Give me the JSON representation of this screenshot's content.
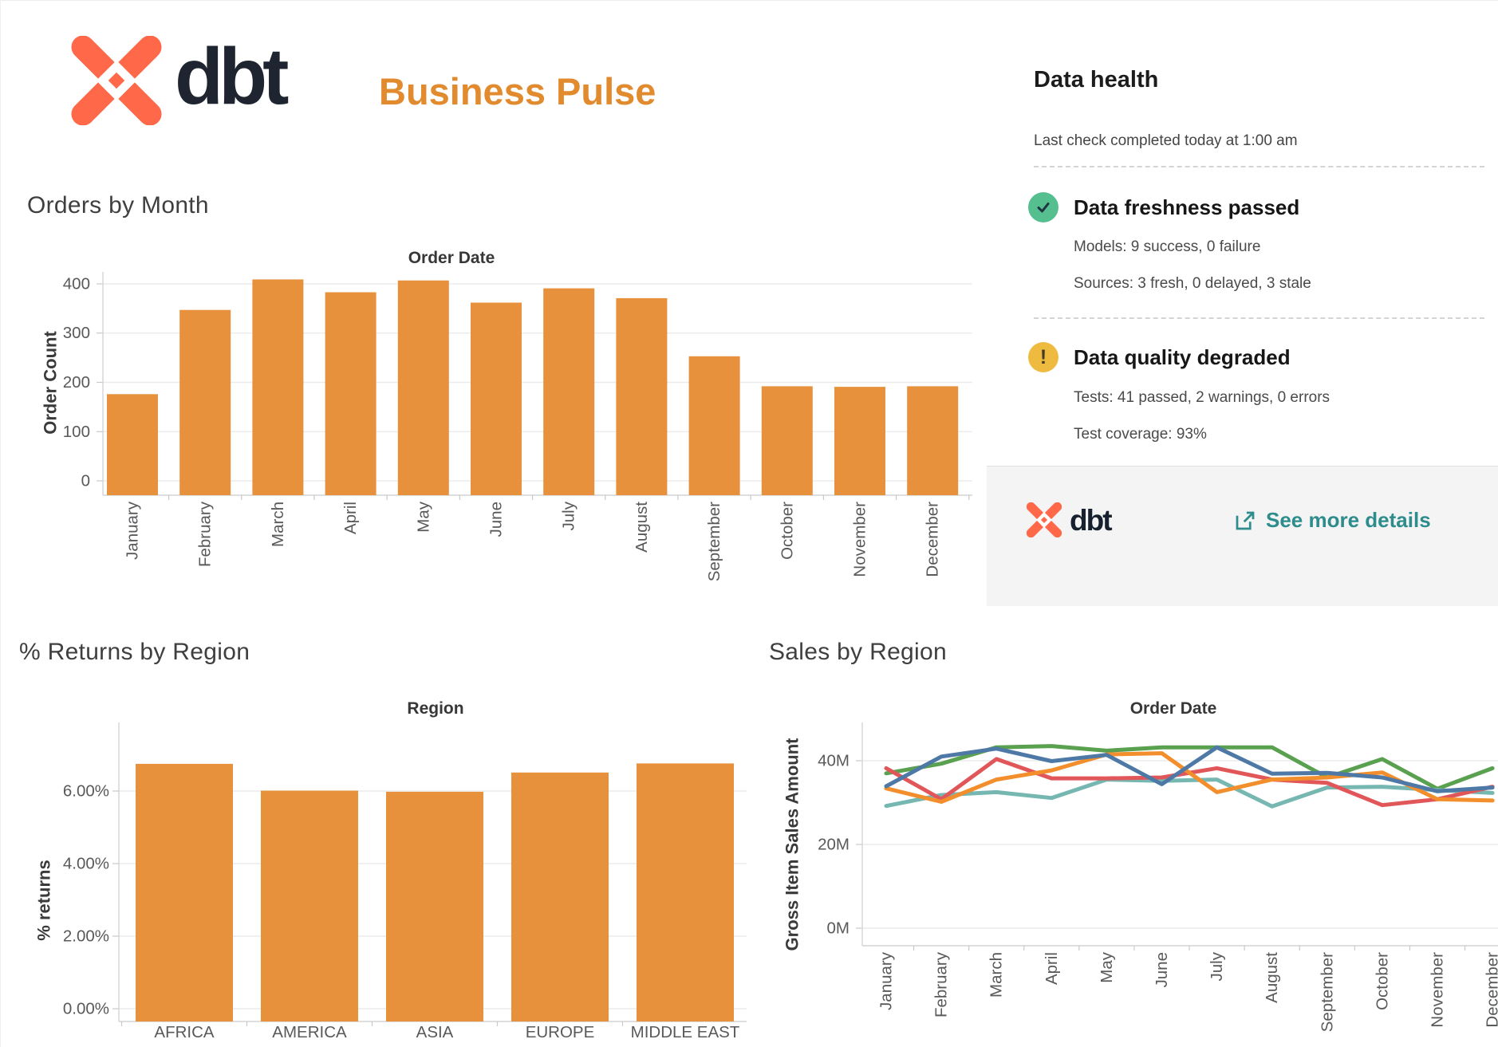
{
  "header": {
    "logo_text": "dbt",
    "title": "Business Pulse"
  },
  "data_health": {
    "title": "Data health",
    "subtitle": "Last check completed today at 1:00 am",
    "sections": [
      {
        "icon": "check-circle",
        "icon_color": "#56bf8f",
        "title": "Data freshness passed",
        "line1": "Models: 9 success, 0 failure",
        "line2": "Sources: 3 fresh, 0 delayed, 3 stale"
      },
      {
        "icon": "warning-circle",
        "icon_color": "#eebb40",
        "title": "Data quality degraded",
        "line1": "Tests: 41 passed, 2 warnings, 0 errors",
        "line2": "Test coverage: 93%"
      }
    ],
    "footer": {
      "logo_text": "dbt",
      "link_label": "See more details",
      "link_color": "#2e8c8c"
    }
  },
  "chart_data": [
    {
      "id": "orders",
      "type": "bar",
      "title": "Orders by Month",
      "pane_title": "Order Date",
      "xlabel": "Order Date",
      "ylabel": "Order Count",
      "categories": [
        "January",
        "February",
        "March",
        "April",
        "May",
        "June",
        "July",
        "August",
        "September",
        "October",
        "November",
        "December"
      ],
      "values": [
        176,
        347,
        409,
        383,
        407,
        362,
        391,
        371,
        253,
        192,
        191,
        192
      ],
      "yticks": [
        {
          "v": 0,
          "label": "0"
        },
        {
          "v": 100,
          "label": "100"
        },
        {
          "v": 200,
          "label": "200"
        },
        {
          "v": 300,
          "label": "300"
        },
        {
          "v": 400,
          "label": "400"
        }
      ],
      "ylim": [
        0,
        440
      ],
      "bar_color": "#e8913c",
      "grid": "horizontal",
      "legend": "none"
    },
    {
      "id": "returns",
      "type": "bar",
      "title": "% Returns by Region",
      "pane_title": "Region",
      "xlabel": "Region",
      "ylabel": "% returns",
      "categories": [
        "AFRICA",
        "AMERICA",
        "ASIA",
        "EUROPE",
        "MIDDLE EAST"
      ],
      "values": [
        6.75,
        6.01,
        5.98,
        6.51,
        6.76
      ],
      "value_unit": "percent",
      "yticks": [
        {
          "v": 0,
          "label": "0.00%"
        },
        {
          "v": 2,
          "label": "2.00%"
        },
        {
          "v": 4,
          "label": "4.00%"
        },
        {
          "v": 6,
          "label": "6.00%"
        }
      ],
      "ylim": [
        0,
        7.8
      ],
      "bar_color": "#e8913c",
      "grid": "horizontal",
      "legend": "none"
    },
    {
      "id": "sales",
      "type": "line",
      "title": "Sales by Region",
      "pane_title": "Order Date",
      "xlabel": "Order Date",
      "ylabel": "Gross Item Sales Amount",
      "categories": [
        "January",
        "February",
        "March",
        "April",
        "May",
        "June",
        "July",
        "August",
        "September",
        "October",
        "November",
        "December"
      ],
      "yticks": [
        {
          "v": 0,
          "label": "0M"
        },
        {
          "v": 20,
          "label": "20M"
        },
        {
          "v": 40,
          "label": "40M"
        }
      ],
      "ylim": [
        0,
        47
      ],
      "value_unit": "millions",
      "grid": "horizontal",
      "legend": "none",
      "series": [
        {
          "name": "green",
          "color": "#59a14f",
          "values": [
            37.0,
            39.3,
            43.2,
            43.5,
            42.4,
            43.2,
            43.2,
            43.2,
            36.0,
            40.4,
            33.3,
            38.2
          ]
        },
        {
          "name": "teal",
          "color": "#76b7b2",
          "values": [
            29.2,
            31.8,
            32.5,
            31.1,
            35.5,
            35.2,
            35.5,
            29.1,
            33.6,
            33.8,
            33.0,
            32.3
          ]
        },
        {
          "name": "red",
          "color": "#e15759",
          "values": [
            38.2,
            30.8,
            40.4,
            35.8,
            35.8,
            36.0,
            38.2,
            35.5,
            34.7,
            29.4,
            30.8,
            33.8
          ]
        },
        {
          "name": "orange",
          "color": "#f28e2b",
          "values": [
            33.4,
            30.2,
            35.5,
            37.7,
            41.5,
            41.8,
            32.5,
            35.5,
            36.0,
            37.2,
            30.8,
            30.5
          ]
        },
        {
          "name": "blue",
          "color": "#4e79a7",
          "values": [
            33.9,
            41.0,
            42.9,
            39.9,
            41.4,
            34.4,
            43.2,
            36.9,
            37.1,
            36.0,
            32.7,
            33.6
          ]
        }
      ]
    }
  ]
}
